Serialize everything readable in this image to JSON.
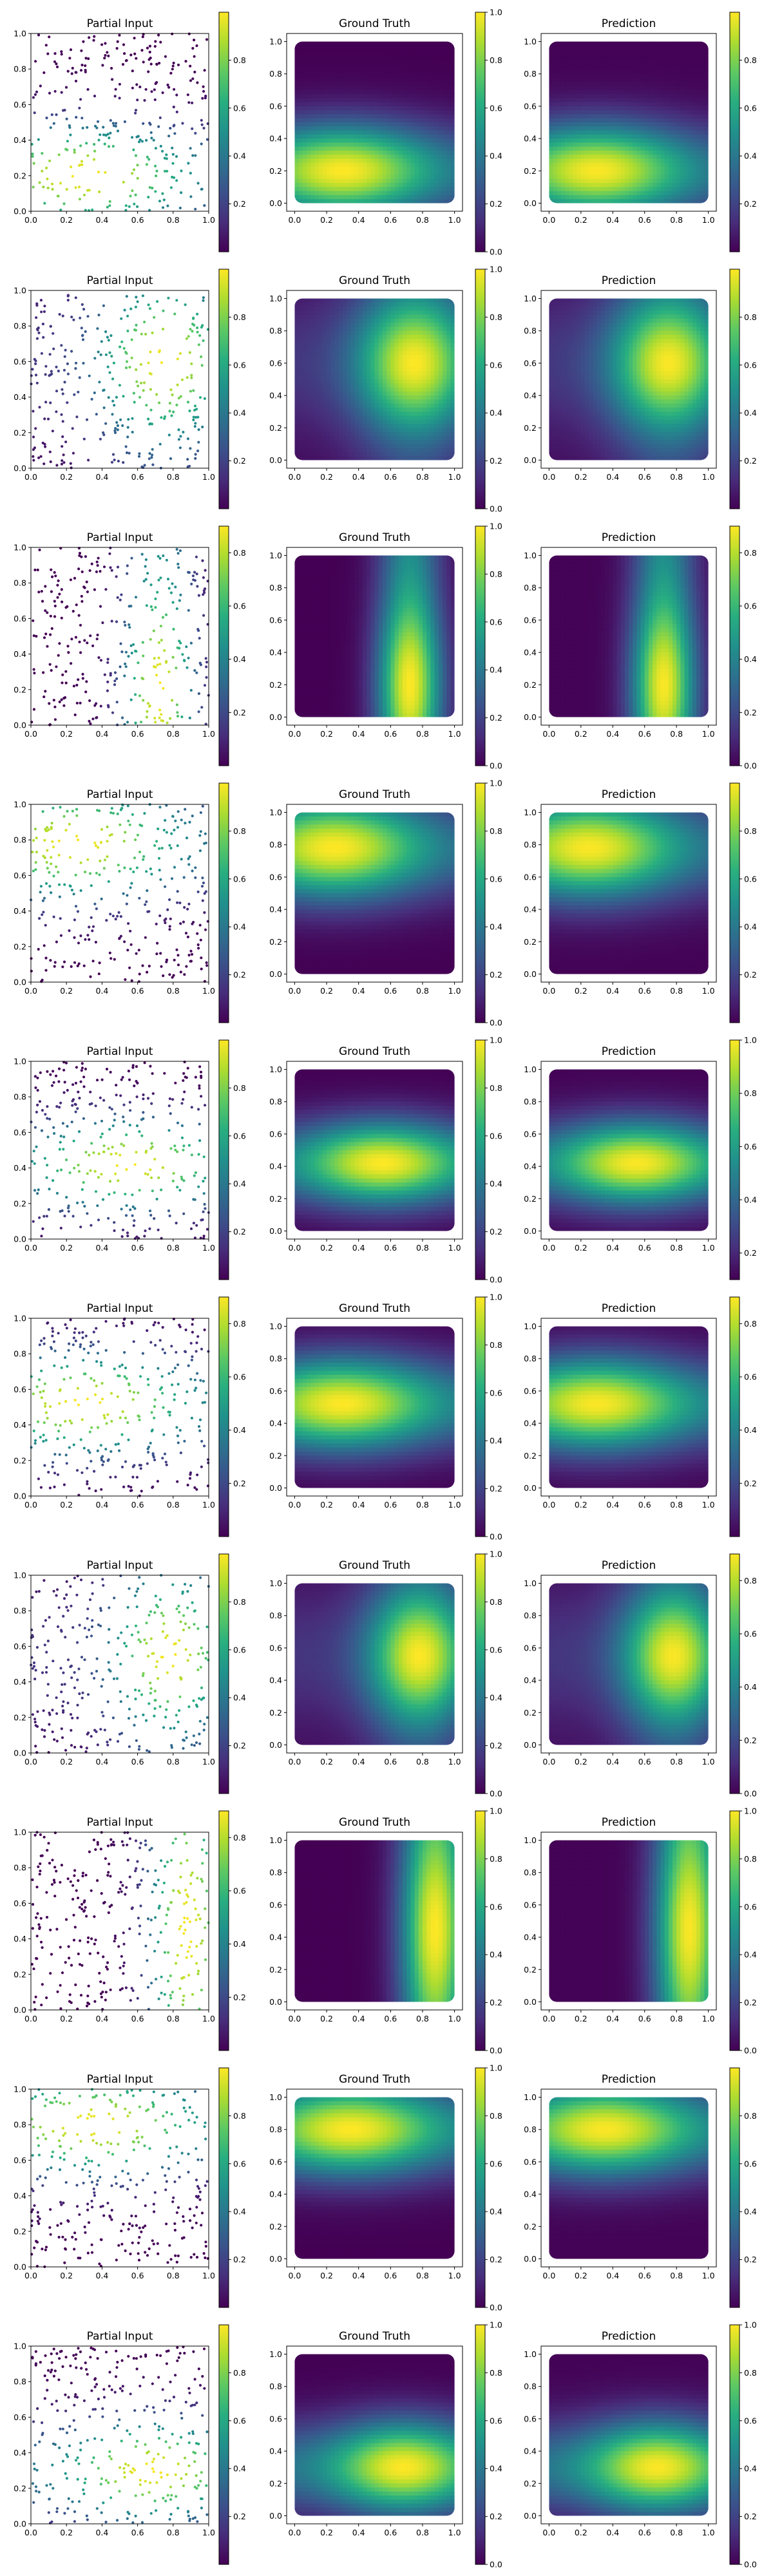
{
  "colors": {
    "background": "#ffffff",
    "axis": "#000000",
    "colormap": "viridis",
    "colormap_stops": [
      "#440154",
      "#472d7b",
      "#3b528b",
      "#2c728e",
      "#21918c",
      "#28ae80",
      "#5ec962",
      "#addc30",
      "#fde725"
    ]
  },
  "panel_titles": {
    "input": "Partial Input",
    "truth": "Ground Truth",
    "prediction": "Prediction"
  },
  "chart_data": {
    "type": "heatmap",
    "layout": "10 rows x 3 columns of panels, each with a vertical colorbar",
    "grid": false,
    "colorbar_placement": "right of each panel",
    "input_axes": {
      "xlim": [
        0,
        1
      ],
      "ylim": [
        0,
        1
      ],
      "xticks": [
        "0.0",
        "0.2",
        "0.4",
        "0.6",
        "0.8",
        "1.0"
      ],
      "yticks": [
        "0.0",
        "0.2",
        "0.4",
        "0.6",
        "0.8",
        "1.0"
      ],
      "marker": "scatter of random sample points coloured by value"
    },
    "field_axes": {
      "xlim": [
        -0.05,
        1.05
      ],
      "ylim": [
        -0.05,
        1.05
      ],
      "xticks": [
        "0.0",
        "0.2",
        "0.4",
        "0.6",
        "0.8",
        "1.0"
      ],
      "yticks": [
        "0.0",
        "0.2",
        "0.4",
        "0.6",
        "0.8",
        "1.0"
      ]
    },
    "field_note": "field is a product of two gaussian bumps in x and y, value range approximately 0 to 1",
    "rows": [
      {
        "field": {
          "x": {
            "type": "flat",
            "lo": 0.25,
            "hi": 1.0,
            "mu": 0.3,
            "sigma": 0.4
          },
          "y": {
            "type": "bump",
            "lo": 0.0,
            "hi": 1.0,
            "mu": 0.2,
            "sigma": 0.2
          }
        },
        "cbar_input": {
          "ticks": [
            0.2,
            0.4,
            0.6,
            0.8
          ],
          "range": [
            0.0,
            1.0
          ]
        },
        "cbar_truth": {
          "ticks": [
            0.0,
            0.2,
            0.4,
            0.6,
            0.8,
            1.0
          ],
          "range": [
            0.0,
            1.0
          ]
        },
        "cbar_pred": {
          "ticks": [
            0.2,
            0.4,
            0.6,
            0.8
          ],
          "range": [
            0.0,
            1.0
          ]
        }
      },
      {
        "field": {
          "x": {
            "type": "bump",
            "lo": 0.15,
            "hi": 1.0,
            "mu": 0.75,
            "sigma": 0.25
          },
          "y": {
            "type": "bump",
            "lo": 0.15,
            "hi": 1.0,
            "mu": 0.6,
            "sigma": 0.3
          }
        },
        "cbar_input": {
          "ticks": [
            0.2,
            0.4,
            0.6,
            0.8
          ],
          "range": [
            0.0,
            1.0
          ]
        },
        "cbar_truth": {
          "ticks": [
            0.0,
            0.2,
            0.4,
            0.6,
            0.8,
            1.0
          ],
          "range": [
            0.0,
            1.0
          ]
        },
        "cbar_pred": {
          "ticks": [
            0.2,
            0.4,
            0.6,
            0.8
          ],
          "range": [
            0.0,
            1.0
          ]
        }
      },
      {
        "field": {
          "x": {
            "type": "bump",
            "lo": 0.0,
            "hi": 1.0,
            "mu": 0.72,
            "sigma": 0.14
          },
          "y": {
            "type": "flat",
            "lo": 0.45,
            "hi": 1.0,
            "mu": 0.2,
            "sigma": 0.35
          }
        },
        "cbar_input": {
          "ticks": [
            0.2,
            0.4,
            0.6,
            0.8
          ],
          "range": [
            0.0,
            0.9
          ]
        },
        "cbar_truth": {
          "ticks": [
            0.0,
            0.2,
            0.4,
            0.6,
            0.8,
            1.0
          ],
          "range": [
            0.0,
            1.0
          ]
        },
        "cbar_pred": {
          "ticks": [
            0.0,
            0.2,
            0.4,
            0.6,
            0.8
          ],
          "range": [
            0.0,
            0.9
          ]
        }
      },
      {
        "field": {
          "x": {
            "type": "flat",
            "lo": 0.25,
            "hi": 1.0,
            "mu": 0.25,
            "sigma": 0.4
          },
          "y": {
            "type": "bump",
            "lo": 0.0,
            "hi": 1.0,
            "mu": 0.78,
            "sigma": 0.22
          }
        },
        "cbar_input": {
          "ticks": [
            0.2,
            0.4,
            0.6,
            0.8
          ],
          "range": [
            0.0,
            1.0
          ]
        },
        "cbar_truth": {
          "ticks": [
            0.0,
            0.2,
            0.4,
            0.6,
            0.8,
            1.0
          ],
          "range": [
            0.0,
            1.0
          ]
        },
        "cbar_pred": {
          "ticks": [
            0.2,
            0.4,
            0.6,
            0.8
          ],
          "range": [
            0.0,
            1.0
          ]
        }
      },
      {
        "field": {
          "x": {
            "type": "flat",
            "lo": 0.3,
            "hi": 1.0,
            "mu": 0.55,
            "sigma": 0.35
          },
          "y": {
            "type": "bump",
            "lo": 0.0,
            "hi": 1.0,
            "mu": 0.42,
            "sigma": 0.18
          }
        },
        "cbar_input": {
          "ticks": [
            0.2,
            0.4,
            0.6,
            0.8
          ],
          "range": [
            0.0,
            1.0
          ]
        },
        "cbar_truth": {
          "ticks": [
            0.0,
            0.2,
            0.4,
            0.6,
            0.8,
            1.0
          ],
          "range": [
            0.0,
            1.0
          ]
        },
        "cbar_pred": {
          "ticks": [
            0.2,
            0.4,
            0.6,
            0.8,
            1.0
          ],
          "range": [
            0.1,
            1.0
          ]
        }
      },
      {
        "field": {
          "x": {
            "type": "flat",
            "lo": 0.3,
            "hi": 1.0,
            "mu": 0.3,
            "sigma": 0.4
          },
          "y": {
            "type": "bump",
            "lo": 0.0,
            "hi": 1.0,
            "mu": 0.52,
            "sigma": 0.2
          }
        },
        "cbar_input": {
          "ticks": [
            0.2,
            0.4,
            0.6,
            0.8
          ],
          "range": [
            0.0,
            0.9
          ]
        },
        "cbar_truth": {
          "ticks": [
            0.0,
            0.2,
            0.4,
            0.6,
            0.8,
            1.0
          ],
          "range": [
            0.0,
            1.0
          ]
        },
        "cbar_pred": {
          "ticks": [
            0.2,
            0.4,
            0.6,
            0.8
          ],
          "range": [
            0.0,
            0.9
          ]
        }
      },
      {
        "field": {
          "x": {
            "type": "bump",
            "lo": 0.15,
            "hi": 1.0,
            "mu": 0.78,
            "sigma": 0.22
          },
          "y": {
            "type": "bump",
            "lo": 0.15,
            "hi": 1.0,
            "mu": 0.55,
            "sigma": 0.3
          }
        },
        "cbar_input": {
          "ticks": [
            0.2,
            0.4,
            0.6,
            0.8
          ],
          "range": [
            0.0,
            1.0
          ]
        },
        "cbar_truth": {
          "ticks": [
            0.0,
            0.2,
            0.4,
            0.6,
            0.8,
            1.0
          ],
          "range": [
            0.0,
            1.0
          ]
        },
        "cbar_pred": {
          "ticks": [
            0.0,
            0.2,
            0.4,
            0.6,
            0.8
          ],
          "range": [
            0.0,
            0.9
          ]
        }
      },
      {
        "field": {
          "x": {
            "type": "bump",
            "lo": 0.0,
            "hi": 1.0,
            "mu": 0.88,
            "sigma": 0.15
          },
          "y": {
            "type": "flat",
            "lo": 0.6,
            "hi": 1.0,
            "mu": 0.45,
            "sigma": 0.4
          }
        },
        "cbar_input": {
          "ticks": [
            0.2,
            0.4,
            0.6,
            0.8
          ],
          "range": [
            0.0,
            0.9
          ]
        },
        "cbar_truth": {
          "ticks": [
            0.0,
            0.2,
            0.4,
            0.6,
            0.8,
            1.0
          ],
          "range": [
            0.0,
            1.0
          ]
        },
        "cbar_pred": {
          "ticks": [
            0.0,
            0.2,
            0.4,
            0.6,
            0.8,
            1.0
          ],
          "range": [
            0.0,
            1.0
          ]
        }
      },
      {
        "field": {
          "x": {
            "type": "flat",
            "lo": 0.3,
            "hi": 1.0,
            "mu": 0.35,
            "sigma": 0.4
          },
          "y": {
            "type": "bump",
            "lo": 0.0,
            "hi": 1.0,
            "mu": 0.8,
            "sigma": 0.2
          }
        },
        "cbar_input": {
          "ticks": [
            0.2,
            0.4,
            0.6,
            0.8
          ],
          "range": [
            0.0,
            1.0
          ]
        },
        "cbar_truth": {
          "ticks": [
            0.0,
            0.2,
            0.4,
            0.6,
            0.8,
            1.0
          ],
          "range": [
            0.0,
            1.0
          ]
        },
        "cbar_pred": {
          "ticks": [
            0.2,
            0.4,
            0.6,
            0.8
          ],
          "range": [
            0.0,
            1.0
          ]
        }
      },
      {
        "field": {
          "x": {
            "type": "flat",
            "lo": 0.35,
            "hi": 1.0,
            "mu": 0.68,
            "sigma": 0.3
          },
          "y": {
            "type": "bump",
            "lo": 0.0,
            "hi": 1.0,
            "mu": 0.3,
            "sigma": 0.2
          }
        },
        "cbar_input": {
          "ticks": [
            0.2,
            0.4,
            0.6,
            0.8
          ],
          "range": [
            0.0,
            1.0
          ]
        },
        "cbar_truth": {
          "ticks": [
            0.0,
            0.2,
            0.4,
            0.6,
            0.8,
            1.0
          ],
          "range": [
            0.0,
            1.0
          ]
        },
        "cbar_pred": {
          "ticks": [
            0.0,
            0.2,
            0.4,
            0.6,
            0.8,
            1.0
          ],
          "range": [
            0.0,
            1.0
          ]
        }
      }
    ]
  }
}
